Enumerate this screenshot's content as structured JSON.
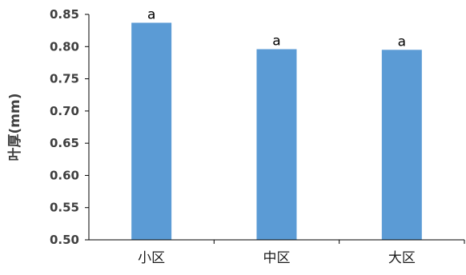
{
  "chart_data": {
    "type": "bar",
    "categories": [
      "小区",
      "中区",
      "大区"
    ],
    "values": [
      0.837,
      0.796,
      0.795
    ],
    "data_labels": [
      "a",
      "a",
      "a"
    ],
    "title": "",
    "xlabel": "",
    "ylabel": "叶厚(mm)",
    "ylim": [
      0.5,
      0.85
    ],
    "yticks": [
      0.5,
      0.55,
      0.6,
      0.65,
      0.7,
      0.75,
      0.8,
      0.85
    ],
    "ytick_labels": [
      "0.50",
      "0.55",
      "0.60",
      "0.65",
      "0.70",
      "0.75",
      "0.80",
      "0.85"
    ],
    "grid": false,
    "legend": "none",
    "colors": {
      "bar": "#5b9bd5",
      "axis": "#000000"
    }
  }
}
